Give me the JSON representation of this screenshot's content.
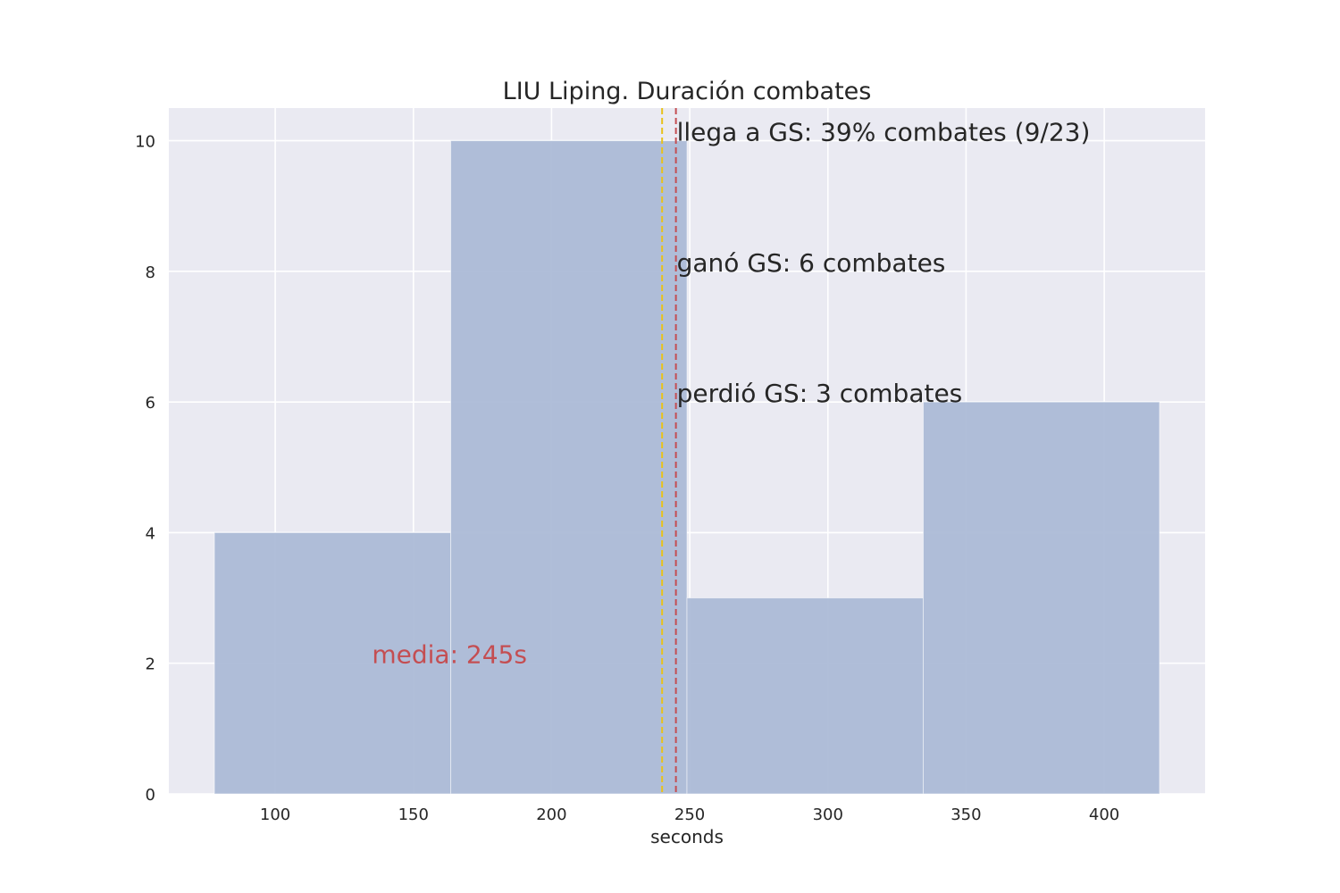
{
  "chart_data": {
    "type": "bar",
    "title": "LIU Liping. Duración combates",
    "xlabel": "seconds",
    "ylabel": "",
    "xlim": [
      61.5,
      436.5
    ],
    "ylim": [
      0,
      10.5
    ],
    "grid": true,
    "bins": [
      {
        "x0": 78,
        "x1": 163.5,
        "count": 4
      },
      {
        "x0": 163.5,
        "x1": 249,
        "count": 10
      },
      {
        "x0": 249,
        "x1": 334.5,
        "count": 3
      },
      {
        "x0": 334.5,
        "x1": 420,
        "count": 6
      }
    ],
    "xticks": [
      100,
      150,
      200,
      250,
      300,
      350,
      400
    ],
    "yticks": [
      0,
      2,
      4,
      6,
      8,
      10
    ],
    "mean": {
      "value": 245,
      "color": "#c44e52",
      "label": "media: 245s",
      "label_x": 135,
      "label_y": 2
    },
    "median": {
      "value": 240,
      "color": "#e8c21c"
    },
    "annotations": [
      {
        "text": "llega a GS: 39% combates (9/23)",
        "x": 245,
        "y": 10
      },
      {
        "text": "ganó GS: 6 combates",
        "x": 245,
        "y": 8
      },
      {
        "text": "perdió GS: 3 combates",
        "x": 245,
        "y": 6
      }
    ],
    "colors": {
      "bar": "#a9b8d6",
      "background": "#eaeaf2",
      "grid": "#ffffff",
      "text": "#262626"
    }
  }
}
